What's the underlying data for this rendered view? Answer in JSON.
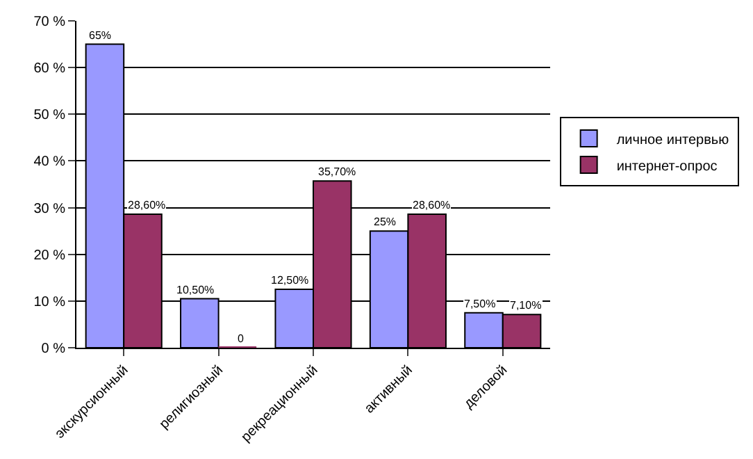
{
  "chart_data": {
    "type": "bar",
    "categories": [
      "экскурсионный",
      "религиозный",
      "рекреационный",
      "активный",
      "деловой"
    ],
    "series": [
      {
        "name": "личное интервью",
        "color": "#9999ff",
        "values": [
          65,
          10.5,
          12.5,
          25,
          7.5
        ],
        "value_labels": [
          "65%",
          "10,50%",
          "12,50%",
          "25%",
          "7,50%"
        ]
      },
      {
        "name": "интернет-опрос",
        "color": "#993366",
        "values": [
          28.6,
          0,
          35.7,
          28.6,
          7.1
        ],
        "value_labels": [
          "28,60%",
          "0",
          "35,70%",
          "28,60%",
          "7,10%"
        ]
      }
    ],
    "ylim": [
      0,
      70
    ],
    "yticks": [
      {
        "value": 0,
        "label": "0 %"
      },
      {
        "value": 10,
        "label": "10 %"
      },
      {
        "value": 20,
        "label": "20 %"
      },
      {
        "value": 30,
        "label": "30 %"
      },
      {
        "value": 40,
        "label": "40 %"
      },
      {
        "value": 50,
        "label": "50 %"
      },
      {
        "value": 60,
        "label": "60 %"
      },
      {
        "value": 70,
        "label": "70 %"
      }
    ],
    "grid": "y",
    "legend": "right"
  }
}
